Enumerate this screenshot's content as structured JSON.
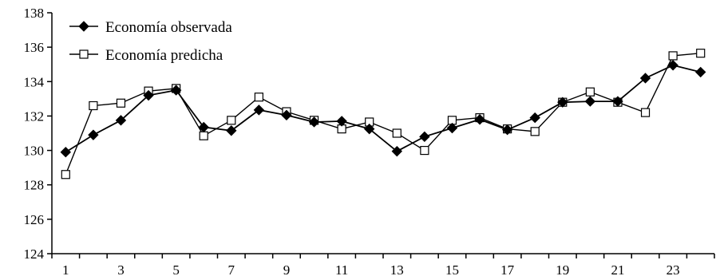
{
  "chart_data": {
    "type": "line",
    "title": "",
    "xlabel": "",
    "ylabel": "",
    "x": [
      1,
      2,
      3,
      4,
      5,
      6,
      7,
      8,
      9,
      10,
      11,
      12,
      13,
      14,
      15,
      16,
      17,
      18,
      19,
      20,
      21,
      22,
      23,
      24
    ],
    "x_tick_labels": [
      "1",
      "3",
      "5",
      "7",
      "9",
      "11",
      "13",
      "15",
      "17",
      "19",
      "21",
      "23"
    ],
    "ylim": [
      124,
      138
    ],
    "y_ticks": [
      124,
      126,
      128,
      130,
      132,
      134,
      136,
      138
    ],
    "grid": false,
    "legend_position": "top-left",
    "series": [
      {
        "name": "Economía observada",
        "marker": "filled-diamond",
        "color": "#000000",
        "values": [
          129.9,
          130.9,
          131.75,
          133.2,
          133.5,
          131.35,
          131.15,
          132.35,
          132.05,
          131.65,
          131.7,
          131.25,
          129.95,
          130.8,
          131.3,
          131.8,
          131.2,
          131.9,
          132.8,
          132.85,
          132.85,
          134.2,
          134.95,
          134.55
        ]
      },
      {
        "name": "Economía predicha",
        "marker": "open-square",
        "color": "#000000",
        "values": [
          128.6,
          132.6,
          132.75,
          133.45,
          133.6,
          130.85,
          131.75,
          133.1,
          132.25,
          131.75,
          131.25,
          131.65,
          131.0,
          130.0,
          131.75,
          131.9,
          131.25,
          131.1,
          132.8,
          133.4,
          132.8,
          132.2,
          135.5,
          135.65
        ]
      }
    ]
  }
}
